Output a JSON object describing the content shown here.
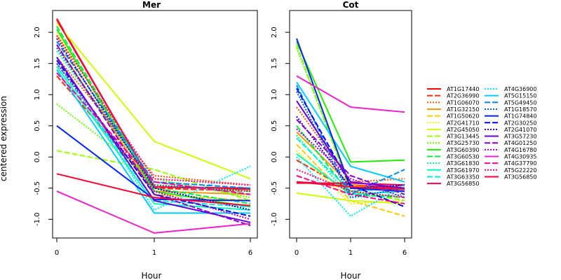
{
  "chart_data": {
    "type": "line",
    "ylabel": "centered expression",
    "xlabel": "Hour",
    "x": [
      "0",
      "1",
      "6"
    ],
    "ylim": [
      -1.3,
      2.35
    ],
    "yticks": [
      -1.0,
      -0.5,
      0.0,
      0.5,
      1.0,
      1.5,
      2.0
    ],
    "panels": [
      {
        "title": "Mer"
      },
      {
        "title": "Cot"
      }
    ],
    "series": [
      {
        "name": "AT1G17440",
        "color": "#FF0000",
        "dash": "solid",
        "mer": [
          2.22,
          -0.48,
          -0.52
        ],
        "cot": [
          -0.4,
          -0.45,
          -0.5
        ]
      },
      {
        "name": "AT2G36990",
        "color": "#FF2A00",
        "dash": "long",
        "mer": [
          1.3,
          -0.5,
          -0.55
        ],
        "cot": [
          -0.05,
          -0.55,
          -0.45
        ]
      },
      {
        "name": "AT1G06070",
        "color": "#FF5500",
        "dash": "dot",
        "mer": [
          1.6,
          -0.3,
          -0.45
        ],
        "cot": [
          0.8,
          -0.4,
          -0.35
        ]
      },
      {
        "name": "AT1G32150",
        "color": "#FF9900",
        "dash": "solid",
        "mer": [
          1.8,
          -0.55,
          -0.6
        ],
        "cot": [
          0.4,
          -0.45,
          -0.55
        ]
      },
      {
        "name": "AT1G50620",
        "color": "#FFCC00",
        "dash": "long",
        "mer": [
          1.95,
          -0.6,
          -0.7
        ],
        "cot": [
          0.2,
          -0.7,
          -0.95
        ]
      },
      {
        "name": "AT2G41710",
        "color": "#FFEE00",
        "dash": "dot",
        "mer": [
          2.0,
          -0.45,
          -0.55
        ],
        "cot": [
          0.1,
          -0.75,
          -0.7
        ]
      },
      {
        "name": "AT2G45050",
        "color": "#CCFF00",
        "dash": "solid",
        "mer": [
          2.15,
          0.25,
          -0.35
        ],
        "cot": [
          -0.58,
          -0.7,
          -0.75
        ]
      },
      {
        "name": "AT3G13445",
        "color": "#99FF00",
        "dash": "long",
        "mer": [
          0.1,
          -0.2,
          -0.7
        ],
        "cot": [
          1.8,
          -0.55,
          -0.7
        ]
      },
      {
        "name": "AT3G25730",
        "color": "#66FF00",
        "dash": "dot",
        "mer": [
          0.85,
          -0.35,
          -0.65
        ],
        "cot": [
          1.75,
          -0.5,
          -0.55
        ]
      },
      {
        "name": "AT3G60390",
        "color": "#22EE00",
        "dash": "solid",
        "mer": [
          2.05,
          -0.55,
          -0.8
        ],
        "cot": [
          1.85,
          -0.08,
          -0.05
        ]
      },
      {
        "name": "AT3G60530",
        "color": "#00EE44",
        "dash": "long",
        "mer": [
          2.1,
          -0.5,
          -0.75
        ],
        "cot": [
          0.5,
          -0.6,
          -0.65
        ]
      },
      {
        "name": "AT3G61830",
        "color": "#00FF88",
        "dash": "dot",
        "mer": [
          1.7,
          -0.4,
          -0.6
        ],
        "cot": [
          0.35,
          -0.65,
          -0.6
        ]
      },
      {
        "name": "AT3G61970",
        "color": "#00FFBB",
        "dash": "solid",
        "mer": [
          1.45,
          -0.75,
          -0.85
        ],
        "cot": [
          0.05,
          -0.6,
          -0.55
        ]
      },
      {
        "name": "AT3G63350",
        "color": "#00EEDD",
        "dash": "long",
        "mer": [
          1.5,
          -0.7,
          -0.8
        ],
        "cot": [
          0.3,
          -0.55,
          -0.5
        ]
      },
      {
        "name": "AT3G56850",
        "color": "#FF0044",
        "dash": "solid",
        "mer": [
          2.2,
          -0.48,
          -0.5
        ],
        "cot": [
          -0.42,
          -0.42,
          -0.45
        ]
      },
      {
        "name": "AT4G36900",
        "color": "#00E5FF",
        "dash": "dot",
        "mer": [
          1.6,
          -0.85,
          -0.15
        ],
        "cot": [
          0.0,
          -0.95,
          -0.45
        ]
      },
      {
        "name": "AT5G15150",
        "color": "#00CCFF",
        "dash": "solid",
        "mer": [
          1.4,
          -0.9,
          -0.9
        ],
        "cot": [
          1.2,
          -0.15,
          -0.4
        ]
      },
      {
        "name": "AT5G49450",
        "color": "#0088FF",
        "dash": "long",
        "mer": [
          1.85,
          -0.4,
          -0.5
        ],
        "cot": [
          1.15,
          -0.6,
          -0.2
        ]
      },
      {
        "name": "AT1G18570",
        "color": "#0055FF",
        "dash": "dot",
        "mer": [
          1.75,
          -0.45,
          -0.55
        ],
        "cot": [
          1.05,
          -0.65,
          -0.5
        ]
      },
      {
        "name": "AT1G74840",
        "color": "#0022FF",
        "dash": "solid",
        "mer": [
          0.5,
          -0.68,
          -0.7
        ],
        "cot": [
          1.9,
          -0.5,
          -0.55
        ]
      },
      {
        "name": "AT2G30250",
        "color": "#0000EE",
        "dash": "long",
        "mer": [
          1.55,
          -0.6,
          -0.95
        ],
        "cot": [
          1.1,
          -0.45,
          -0.8
        ]
      },
      {
        "name": "AT2G41070",
        "color": "#2200DD",
        "dash": "dot",
        "mer": [
          1.9,
          -0.5,
          -0.85
        ],
        "cot": [
          0.65,
          -0.5,
          -0.45
        ]
      },
      {
        "name": "AT3G57230",
        "color": "#6600DD",
        "dash": "solid",
        "mer": [
          1.6,
          -0.7,
          -1.05
        ],
        "cot": [
          0.9,
          -0.4,
          -0.5
        ]
      },
      {
        "name": "AT4G01250",
        "color": "#8800CC",
        "dash": "long",
        "mer": [
          1.8,
          -0.6,
          -1.1
        ],
        "cot": [
          0.6,
          -0.3,
          -0.6
        ]
      },
      {
        "name": "AT4G16780",
        "color": "#AA00CC",
        "dash": "dot",
        "mer": [
          1.5,
          -0.55,
          -1.0
        ],
        "cot": [
          0.45,
          -0.35,
          -0.65
        ]
      },
      {
        "name": "AT4G30935",
        "color": "#EE22CC",
        "dash": "solid",
        "mer": [
          -0.55,
          -1.22,
          -1.07
        ],
        "cot": [
          1.3,
          0.8,
          0.72
        ]
      },
      {
        "name": "AT4G37790",
        "color": "#FF0099",
        "dash": "long",
        "mer": [
          1.35,
          -0.4,
          -0.6
        ],
        "cot": [
          -0.3,
          -0.6,
          -0.75
        ]
      },
      {
        "name": "AT5G22220",
        "color": "#FF0077",
        "dash": "dot",
        "mer": [
          1.95,
          -0.35,
          -0.45
        ],
        "cot": [
          -0.2,
          -0.55,
          -0.65
        ]
      },
      {
        "name": "AT3G56850",
        "color": "#FF0033",
        "dash": "solid",
        "mer": [
          -0.27,
          -0.65,
          -0.78
        ],
        "cot": [
          -0.4,
          -0.48,
          -0.52
        ]
      }
    ]
  }
}
